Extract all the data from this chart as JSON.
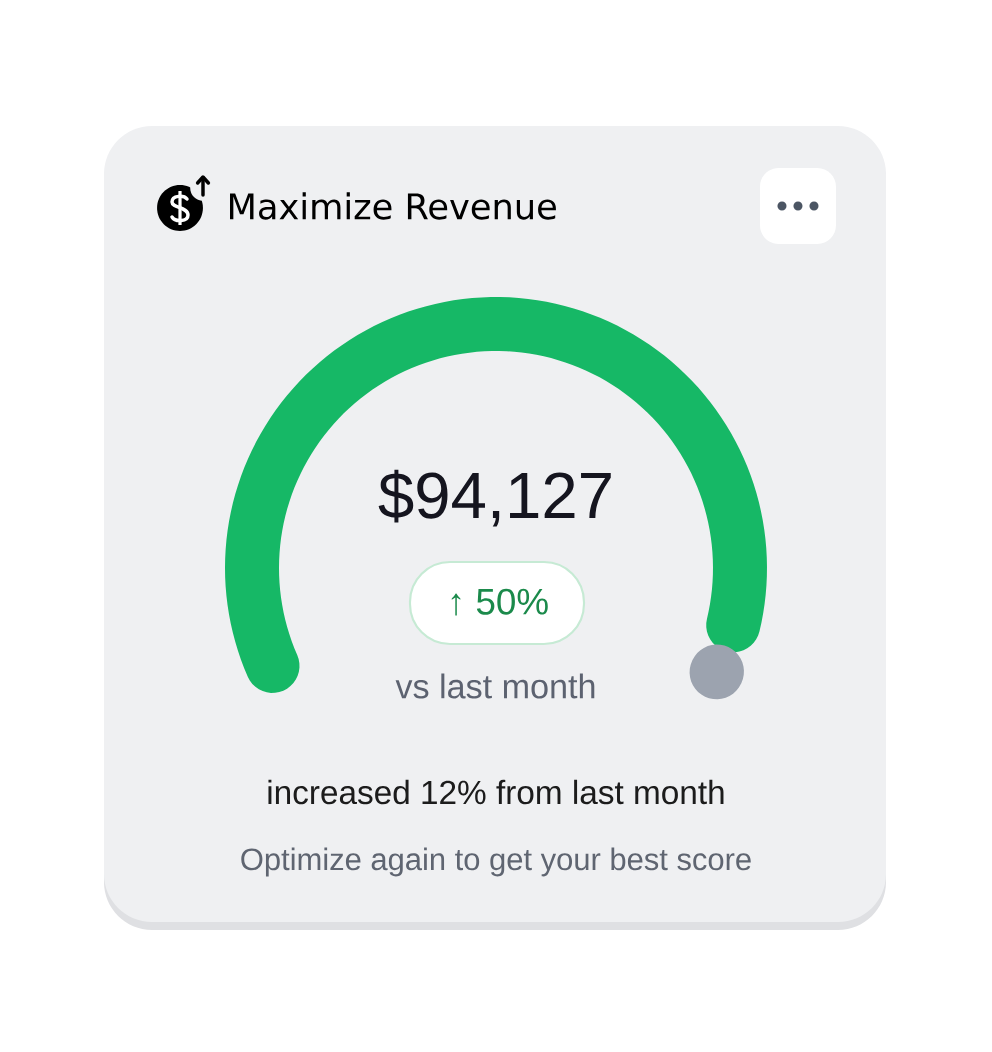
{
  "chart_data": {
    "type": "donut",
    "title": "Maximize Revenue",
    "categories": [
      null,
      null
    ],
    "values": [
      96,
      4
    ],
    "colors": [
      "#16b866",
      "#9ca3af"
    ],
    "annotations": [
      "$94,127",
      "↑ 50%",
      "vs last month",
      "increased 12% from last month",
      "Optimize again to get your best score"
    ]
  }
}
